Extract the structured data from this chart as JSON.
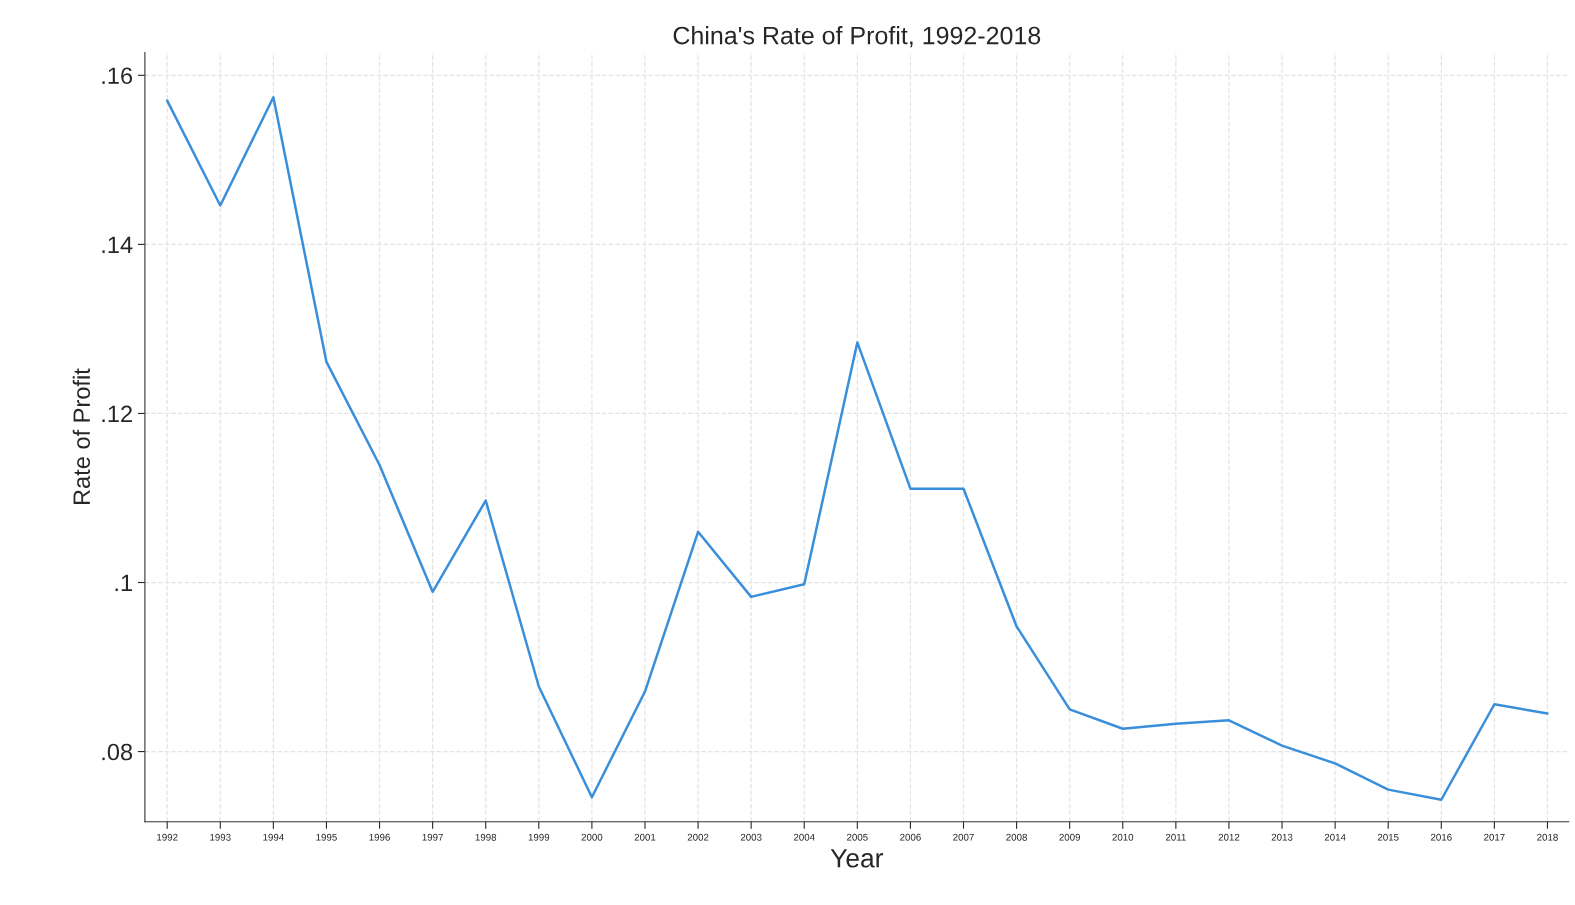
{
  "chart_data": {
    "type": "line",
    "title": "China's Rate of Profit, 1992-2018",
    "xlabel": "Year",
    "ylabel": "Rate of Profit",
    "x": [
      1992,
      1993,
      1994,
      1995,
      1996,
      1997,
      1998,
      1999,
      2000,
      2001,
      2002,
      2003,
      2004,
      2005,
      2006,
      2007,
      2008,
      2009,
      2010,
      2011,
      2012,
      2013,
      2014,
      2015,
      2016,
      2017,
      2018
    ],
    "series": [
      {
        "color": "#3a8fdb",
        "values": [
          0.157,
          0.1446,
          0.1574,
          0.1261,
          0.1139,
          0.0989,
          0.1097,
          0.0877,
          0.0746,
          0.0871,
          0.106,
          0.0983,
          0.0998,
          0.1284,
          0.1111,
          0.1111,
          0.0948,
          0.085,
          0.0827,
          0.0833,
          0.0837,
          0.0807,
          0.0786,
          0.0755,
          0.0743,
          0.0856,
          0.0845
        ]
      }
    ],
    "xlim": [
      1991.58,
      2018.4
    ],
    "xticks": [
      1992,
      1993,
      1994,
      1995,
      1996,
      1997,
      1998,
      1999,
      2000,
      2001,
      2002,
      2003,
      2004,
      2005,
      2006,
      2007,
      2008,
      2009,
      2010,
      2011,
      2012,
      2013,
      2014,
      2015,
      2016,
      2017,
      2018
    ],
    "ylim": [
      0.0717,
      0.1627
    ],
    "yticks": [
      {
        "value": 0.08,
        "label": ".08"
      },
      {
        "value": 0.1,
        "label": ".1"
      },
      {
        "value": 0.12,
        "label": ".12"
      },
      {
        "value": 0.14,
        "label": ".14"
      },
      {
        "value": 0.16,
        "label": ".16"
      }
    ],
    "grid": true,
    "legend": false,
    "marker": "none",
    "line_style": "solid"
  }
}
